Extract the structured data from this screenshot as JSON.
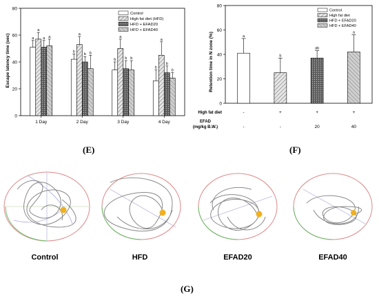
{
  "chart_data": [
    {
      "type": "bar",
      "ylabel": "Escape latency time (sec)",
      "xlabel": "",
      "ylim": [
        0,
        80
      ],
      "yticks": [
        0,
        20,
        40,
        60,
        80
      ],
      "categories": [
        "1 Day",
        "2 Day",
        "3 Day",
        "4 Day"
      ],
      "legend_position": "top-right",
      "series": [
        {
          "name": "Control",
          "values": [
            51,
            42,
            34,
            26
          ],
          "errors": [
            5,
            4,
            6,
            8
          ],
          "letters": [
            "a",
            "b",
            "b",
            "b"
          ]
        },
        {
          "name": "High fat diet (HFD)",
          "values": [
            57,
            53,
            50,
            45
          ],
          "errors": [
            5,
            6,
            7,
            10
          ],
          "letters": [
            "a",
            "a",
            "a",
            "a"
          ]
        },
        {
          "name": "HFD + EFAD20",
          "values": [
            51,
            40,
            35,
            32
          ],
          "errors": [
            5,
            4,
            6,
            5
          ],
          "letters": [
            "a",
            "b",
            "b",
            "b"
          ]
        },
        {
          "name": "HFD + EFAD40",
          "values": [
            52,
            35,
            34,
            28
          ],
          "errors": [
            5,
            10,
            7,
            4
          ],
          "letters": [
            "a",
            "b",
            "b",
            "b"
          ]
        }
      ],
      "grid": false
    },
    {
      "type": "bar",
      "ylabel": "Retention time in N zone (%)",
      "xlabel": "",
      "ylim": [
        0,
        80
      ],
      "yticks": [
        0,
        20,
        40,
        60,
        80
      ],
      "legend_position": "top-right",
      "row_labels": [
        "High fat diet",
        "EFAD\n(mg/kg B.W.)"
      ],
      "row1": [
        "-",
        "+",
        "+",
        "+"
      ],
      "row2": [
        "-",
        "-",
        "20",
        "40"
      ],
      "series": [
        {
          "name": "Control",
          "value": 41,
          "error": 12,
          "letter": "a"
        },
        {
          "name": "High fat diet",
          "value": 25,
          "error": 12,
          "letter": "b"
        },
        {
          "name": "HFD + EFAD20",
          "value": 37,
          "error": 6,
          "letter": "ab"
        },
        {
          "name": "HFD + EFAD40",
          "value": 42,
          "error": 14,
          "letter": "a"
        }
      ],
      "grid": false
    }
  ],
  "panels": {
    "e": "(E)",
    "f": "(F)",
    "g": "(G)"
  },
  "tracks": [
    {
      "label": "Control"
    },
    {
      "label": "HFD"
    },
    {
      "label": "EFAD20"
    },
    {
      "label": "EFAD40"
    }
  ],
  "colors": {
    "control": "#ffffff",
    "hfd": "#cfcfcf",
    "efad20": "#6e6e6e",
    "efad40": "#a8a8a8",
    "platform": "#f0b020",
    "path": "#808080"
  }
}
